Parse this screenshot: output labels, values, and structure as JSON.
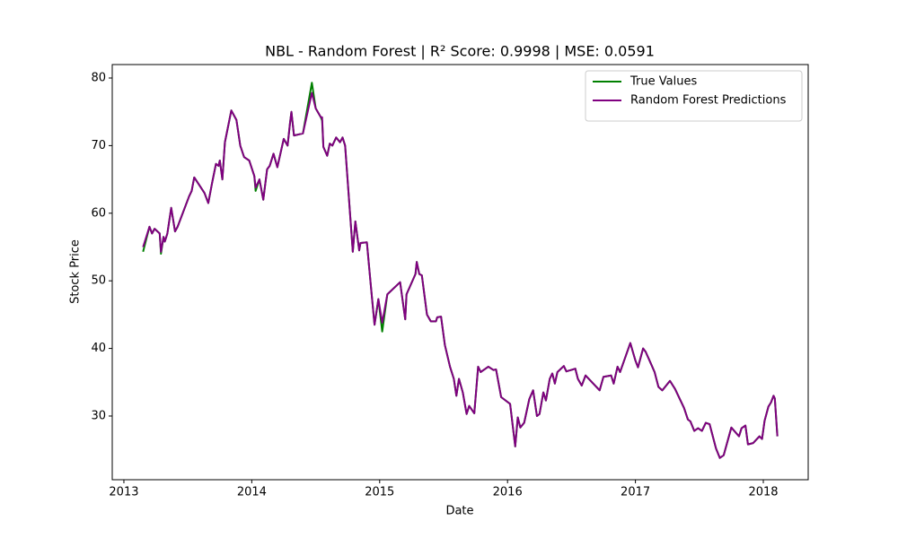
{
  "chart_data": {
    "type": "line",
    "title": "NBL - Random Forest | R² Score: 0.9998 | MSE: 0.0591",
    "xlabel": "Date",
    "ylabel": "Stock Price",
    "x": [
      2013.15,
      2013.2,
      2013.22,
      2013.24,
      2013.28,
      2013.29,
      2013.31,
      2013.32,
      2013.34,
      2013.37,
      2013.4,
      2013.42,
      2013.51,
      2013.53,
      2013.55,
      2013.63,
      2013.66,
      2013.69,
      2013.72,
      2013.74,
      2013.75,
      2013.77,
      2013.79,
      2013.84,
      2013.88,
      2013.91,
      2013.94,
      2013.98,
      2014.02,
      2014.03,
      2014.06,
      2014.09,
      2014.12,
      2014.14,
      2014.17,
      2014.2,
      2014.25,
      2014.28,
      2014.3,
      2014.31,
      2014.33,
      2014.4,
      2014.47,
      2014.5,
      2014.54,
      2014.55,
      2014.56,
      2014.59,
      2014.61,
      2014.63,
      2014.66,
      2014.69,
      2014.71,
      2014.73,
      2014.79,
      2014.81,
      2014.84,
      2014.85,
      2014.9,
      2014.93,
      2014.96,
      2014.99,
      2015.02,
      2015.06,
      2015.16,
      2015.2,
      2015.21,
      2015.28,
      2015.29,
      2015.31,
      2015.33,
      2015.37,
      2015.4,
      2015.44,
      2015.45,
      2015.48,
      2015.51,
      2015.55,
      2015.58,
      2015.6,
      2015.62,
      2015.65,
      2015.68,
      2015.7,
      2015.74,
      2015.77,
      2015.79,
      2015.85,
      2015.89,
      2015.91,
      2015.95,
      2016.02,
      2016.06,
      2016.08,
      2016.1,
      2016.13,
      2016.17,
      2016.2,
      2016.23,
      2016.25,
      2016.28,
      2016.3,
      2016.33,
      2016.35,
      2016.37,
      2016.39,
      2016.44,
      2016.46,
      2016.53,
      2016.55,
      2016.58,
      2016.61,
      2016.72,
      2016.75,
      2016.81,
      2016.83,
      2016.86,
      2016.88,
      2016.96,
      2016.98,
      2017.0,
      2017.02,
      2017.06,
      2017.08,
      2017.12,
      2017.15,
      2017.18,
      2017.21,
      2017.27,
      2017.31,
      2017.38,
      2017.41,
      2017.43,
      2017.46,
      2017.49,
      2017.52,
      2017.55,
      2017.58,
      2017.63,
      2017.66,
      2017.69,
      2017.75,
      2017.81,
      2017.83,
      2017.86,
      2017.88,
      2017.92,
      2017.97,
      2017.99,
      2018.01,
      2018.04,
      2018.06,
      2018.08,
      2018.09,
      2018.11
    ],
    "series": [
      {
        "name": "True Values",
        "color": "#008000",
        "values": [
          54.3,
          58,
          57,
          57.7,
          57,
          54,
          56.5,
          55.8,
          57,
          60.8,
          57.3,
          58,
          62.5,
          63.3,
          65.3,
          63,
          61.5,
          64.5,
          67.3,
          67,
          67.8,
          65,
          70.5,
          75.2,
          73.8,
          70,
          68.3,
          67.8,
          65.5,
          63.3,
          65,
          62,
          66.5,
          67,
          68.8,
          66.8,
          71,
          70,
          73.5,
          75,
          71.5,
          71.8,
          79.3,
          75.5,
          74.2,
          73.7,
          69.8,
          68.5,
          70.3,
          70,
          71.2,
          70.5,
          71.2,
          70,
          54.3,
          58.8,
          54.5,
          55.6,
          55.7,
          49.5,
          43.5,
          47.3,
          42.5,
          48,
          49.8,
          44.3,
          48,
          51,
          52.8,
          51,
          50.8,
          45,
          44,
          44,
          44.6,
          44.7,
          40.5,
          37.3,
          35.5,
          33,
          35.5,
          33.5,
          30.3,
          31.5,
          30.4,
          37.3,
          36.5,
          37.3,
          36.8,
          36.9,
          32.8,
          31.8,
          25.5,
          29.8,
          28.3,
          29,
          32.5,
          33.8,
          30,
          30.3,
          33.5,
          32.3,
          35.5,
          36.3,
          34.8,
          36.5,
          37.4,
          36.6,
          37,
          35.5,
          34.5,
          36,
          33.8,
          35.8,
          36,
          34.8,
          37.3,
          36.5,
          40.8,
          39.5,
          38.2,
          37.2,
          40,
          39.5,
          37.8,
          36.5,
          34.3,
          33.8,
          35.2,
          34,
          31.2,
          29.5,
          29.2,
          27.8,
          28.2,
          27.8,
          29,
          28.8,
          25.2,
          23.8,
          24.2,
          28.3,
          27,
          28.2,
          28.6,
          25.8,
          26,
          27,
          26.6,
          29.3,
          31.4,
          32,
          33,
          32.6,
          27
        ]
      },
      {
        "name": "Random Forest Predictions",
        "color": "#800080",
        "values": [
          55,
          58,
          57,
          57.7,
          57,
          54.3,
          56.5,
          55.8,
          57,
          60.8,
          57.3,
          58,
          62.5,
          63.3,
          65.3,
          63,
          61.5,
          64.5,
          67.3,
          67,
          67.8,
          65,
          70.5,
          75.2,
          73.8,
          70,
          68.3,
          67.8,
          65.5,
          63.8,
          65,
          62,
          66.5,
          67,
          68.8,
          66.8,
          71,
          70,
          73.5,
          75,
          71.5,
          71.8,
          77.8,
          75.5,
          74.2,
          74.2,
          69.8,
          68.5,
          70.3,
          70,
          71.2,
          70.5,
          71.2,
          70,
          54.3,
          58.8,
          54.5,
          55.6,
          55.7,
          49.5,
          43.5,
          47.3,
          43.8,
          48,
          49.8,
          44.3,
          48,
          51,
          52.8,
          51,
          50.8,
          45,
          44,
          44,
          44.6,
          44.7,
          40.5,
          37.3,
          35.5,
          33,
          35.5,
          33.5,
          30.3,
          31.5,
          30.4,
          37.3,
          36.5,
          37.3,
          36.8,
          36.9,
          32.8,
          31.8,
          25.5,
          29.8,
          28.3,
          29,
          32.5,
          33.8,
          30,
          30.3,
          33.5,
          32.3,
          35.5,
          36.3,
          34.8,
          36.5,
          37.4,
          36.6,
          37,
          35.5,
          34.5,
          36,
          33.8,
          35.8,
          36,
          34.8,
          37.3,
          36.5,
          40.8,
          39.5,
          38.2,
          37.2,
          40,
          39.5,
          37.8,
          36.5,
          34.3,
          33.8,
          35.2,
          34,
          31.2,
          29.5,
          29.2,
          27.8,
          28.2,
          27.8,
          29,
          28.8,
          25.2,
          23.8,
          24.2,
          28.3,
          27,
          28.2,
          28.6,
          25.8,
          26,
          27,
          26.6,
          29.3,
          31.4,
          32,
          33,
          32.6,
          27
        ]
      }
    ],
    "xlim": [
      2012.909,
      2018.351
    ],
    "xticks": [
      2013,
      2014,
      2015,
      2016,
      2017,
      2018
    ],
    "ylim": [
      20.58,
      81.99
    ],
    "yticks": [
      30,
      40,
      50,
      60,
      70,
      80
    ],
    "grid": false,
    "legend": "upper right"
  }
}
